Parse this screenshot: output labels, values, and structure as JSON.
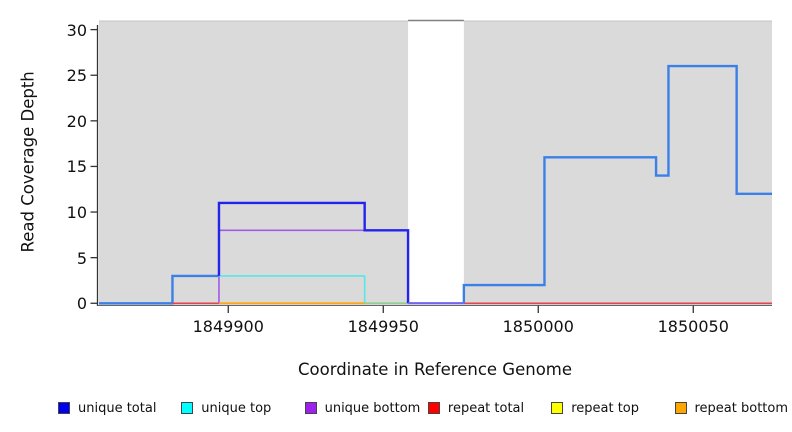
{
  "chart_data": {
    "type": "step-line",
    "title": "",
    "xlabel": "Coordinate in Reference Genome",
    "ylabel": "Read Coverage Depth",
    "xlim": [
      1849858.3,
      1850075.4
    ],
    "ylim": [
      0,
      31
    ],
    "ylim_render": [
      -0.3,
      31
    ],
    "grid": false,
    "xticks": [
      {
        "value": 1849900,
        "label": "1849900"
      },
      {
        "value": 1849950,
        "label": "1849950"
      },
      {
        "value": 1850000,
        "label": "1850000"
      },
      {
        "value": 1850050,
        "label": "1850050"
      }
    ],
    "yticks": [
      {
        "value": 0,
        "label": "0"
      },
      {
        "value": 5,
        "label": "5"
      },
      {
        "value": 10,
        "label": "10"
      },
      {
        "value": 15,
        "label": "15"
      },
      {
        "value": 20,
        "label": "20"
      },
      {
        "value": 25,
        "label": "25"
      },
      {
        "value": 30,
        "label": "30"
      }
    ],
    "background": {
      "plot_fill": "#dadada",
      "band_edge": "#c4c4c4",
      "bands": [
        {
          "x1": 1849858.3,
          "x2": 1849958
        },
        {
          "x1": 1849976,
          "x2": 1850075.4
        }
      ],
      "masked_region": {
        "x1": 1849958,
        "x2": 1849976,
        "top_value": 31,
        "fill": "#ffffff",
        "top_line_color": "#808080"
      }
    },
    "axis_color": "#333333",
    "series": [
      {
        "name": "unique total",
        "color": "#0000ff",
        "steps": [
          [
            1849858,
            0
          ],
          [
            1849882,
            3
          ],
          [
            1849897,
            11
          ],
          [
            1849944,
            8
          ],
          [
            1849958,
            0
          ],
          [
            1849976,
            2
          ],
          [
            1850002,
            16
          ],
          [
            1850038,
            14
          ],
          [
            1850042,
            26
          ],
          [
            1850064,
            12
          ]
        ],
        "xend": 1850075
      },
      {
        "name": "unique top",
        "color": "#00ffff",
        "steps": [
          [
            1849858,
            0
          ],
          [
            1849882,
            3
          ],
          [
            1849944,
            0
          ]
        ],
        "xend": 1849958
      },
      {
        "name": "unique bottom",
        "color": "#a020f0",
        "steps": [
          [
            1849858,
            0
          ],
          [
            1849897,
            8
          ],
          [
            1849958,
            0
          ]
        ],
        "xend": 1849958
      },
      {
        "name": "repeat total",
        "color": "#ff0000",
        "steps": [
          [
            1849858,
            0
          ]
        ],
        "xend": 1850075
      },
      {
        "name": "repeat top",
        "color": "#ffff00",
        "steps": [
          [
            1849858,
            0
          ]
        ],
        "xend": 1850075
      },
      {
        "name": "repeat bottom",
        "color": "#ffa500",
        "steps": [
          [
            1849858,
            0
          ]
        ],
        "xend": 1850075
      }
    ],
    "visible_segments": [
      {
        "series": "unique-total",
        "color": "#3b7fe8",
        "width": 2.4,
        "points": [
          [
            1849858.3,
            0
          ],
          [
            1849882,
            0
          ],
          [
            1849882,
            3
          ],
          [
            1849897,
            3
          ]
        ]
      },
      {
        "series": "repeat-total",
        "color": "#e2454f",
        "width": 1.6,
        "points": [
          [
            1849882,
            0
          ],
          [
            1849897,
            0
          ]
        ]
      },
      {
        "series": "unique-bottom",
        "color": "#a259e8",
        "width": 1.6,
        "points": [
          [
            1849897,
            0
          ],
          [
            1849897,
            8
          ],
          [
            1849944,
            8
          ]
        ]
      },
      {
        "series": "unique-top",
        "color": "#55e8e8",
        "width": 1.6,
        "points": [
          [
            1849897,
            3
          ],
          [
            1849944,
            3
          ],
          [
            1849944,
            0
          ]
        ]
      },
      {
        "series": "repeat-bottom",
        "color": "#ffa510",
        "width": 1.8,
        "points": [
          [
            1849897,
            0
          ],
          [
            1849944,
            0
          ]
        ]
      },
      {
        "series": "top-lines-overlap",
        "color": "#8fcf8f",
        "width": 1.8,
        "points": [
          [
            1849944,
            0
          ],
          [
            1849958,
            0
          ]
        ]
      },
      {
        "series": "unique-total",
        "color": "#2323ee",
        "width": 2.4,
        "points": [
          [
            1849897,
            3
          ],
          [
            1849897,
            11
          ],
          [
            1849944,
            11
          ],
          [
            1849944,
            8
          ],
          [
            1849958,
            8
          ],
          [
            1849958,
            0
          ]
        ]
      },
      {
        "series": "total-overlap-gap",
        "color": "#7264ee",
        "width": 2.2,
        "points": [
          [
            1849958,
            0
          ],
          [
            1849976,
            0
          ]
        ]
      },
      {
        "series": "repeat-total",
        "color": "#e2454f",
        "width": 1.6,
        "points": [
          [
            1849976,
            0
          ],
          [
            1850075.4,
            0
          ]
        ]
      },
      {
        "series": "unique-total",
        "color": "#3b7fe8",
        "width": 2.4,
        "points": [
          [
            1849976,
            0
          ],
          [
            1849976,
            2
          ],
          [
            1850002,
            2
          ],
          [
            1850002,
            16
          ],
          [
            1850038,
            16
          ],
          [
            1850038,
            14
          ],
          [
            1850042,
            14
          ],
          [
            1850042,
            26
          ],
          [
            1850064,
            26
          ],
          [
            1850064,
            12
          ],
          [
            1850075.4,
            12
          ]
        ]
      }
    ],
    "legend": {
      "position": "bottom",
      "items": [
        {
          "label": "unique total",
          "fill": "#0000ee"
        },
        {
          "label": "unique top",
          "fill": "#00ffff"
        },
        {
          "label": "unique bottom",
          "fill": "#a020f0"
        },
        {
          "label": "repeat total",
          "fill": "#ff0000"
        },
        {
          "label": "repeat top",
          "fill": "#ffff00"
        },
        {
          "label": "repeat bottom",
          "fill": "#ffa500"
        }
      ]
    }
  }
}
